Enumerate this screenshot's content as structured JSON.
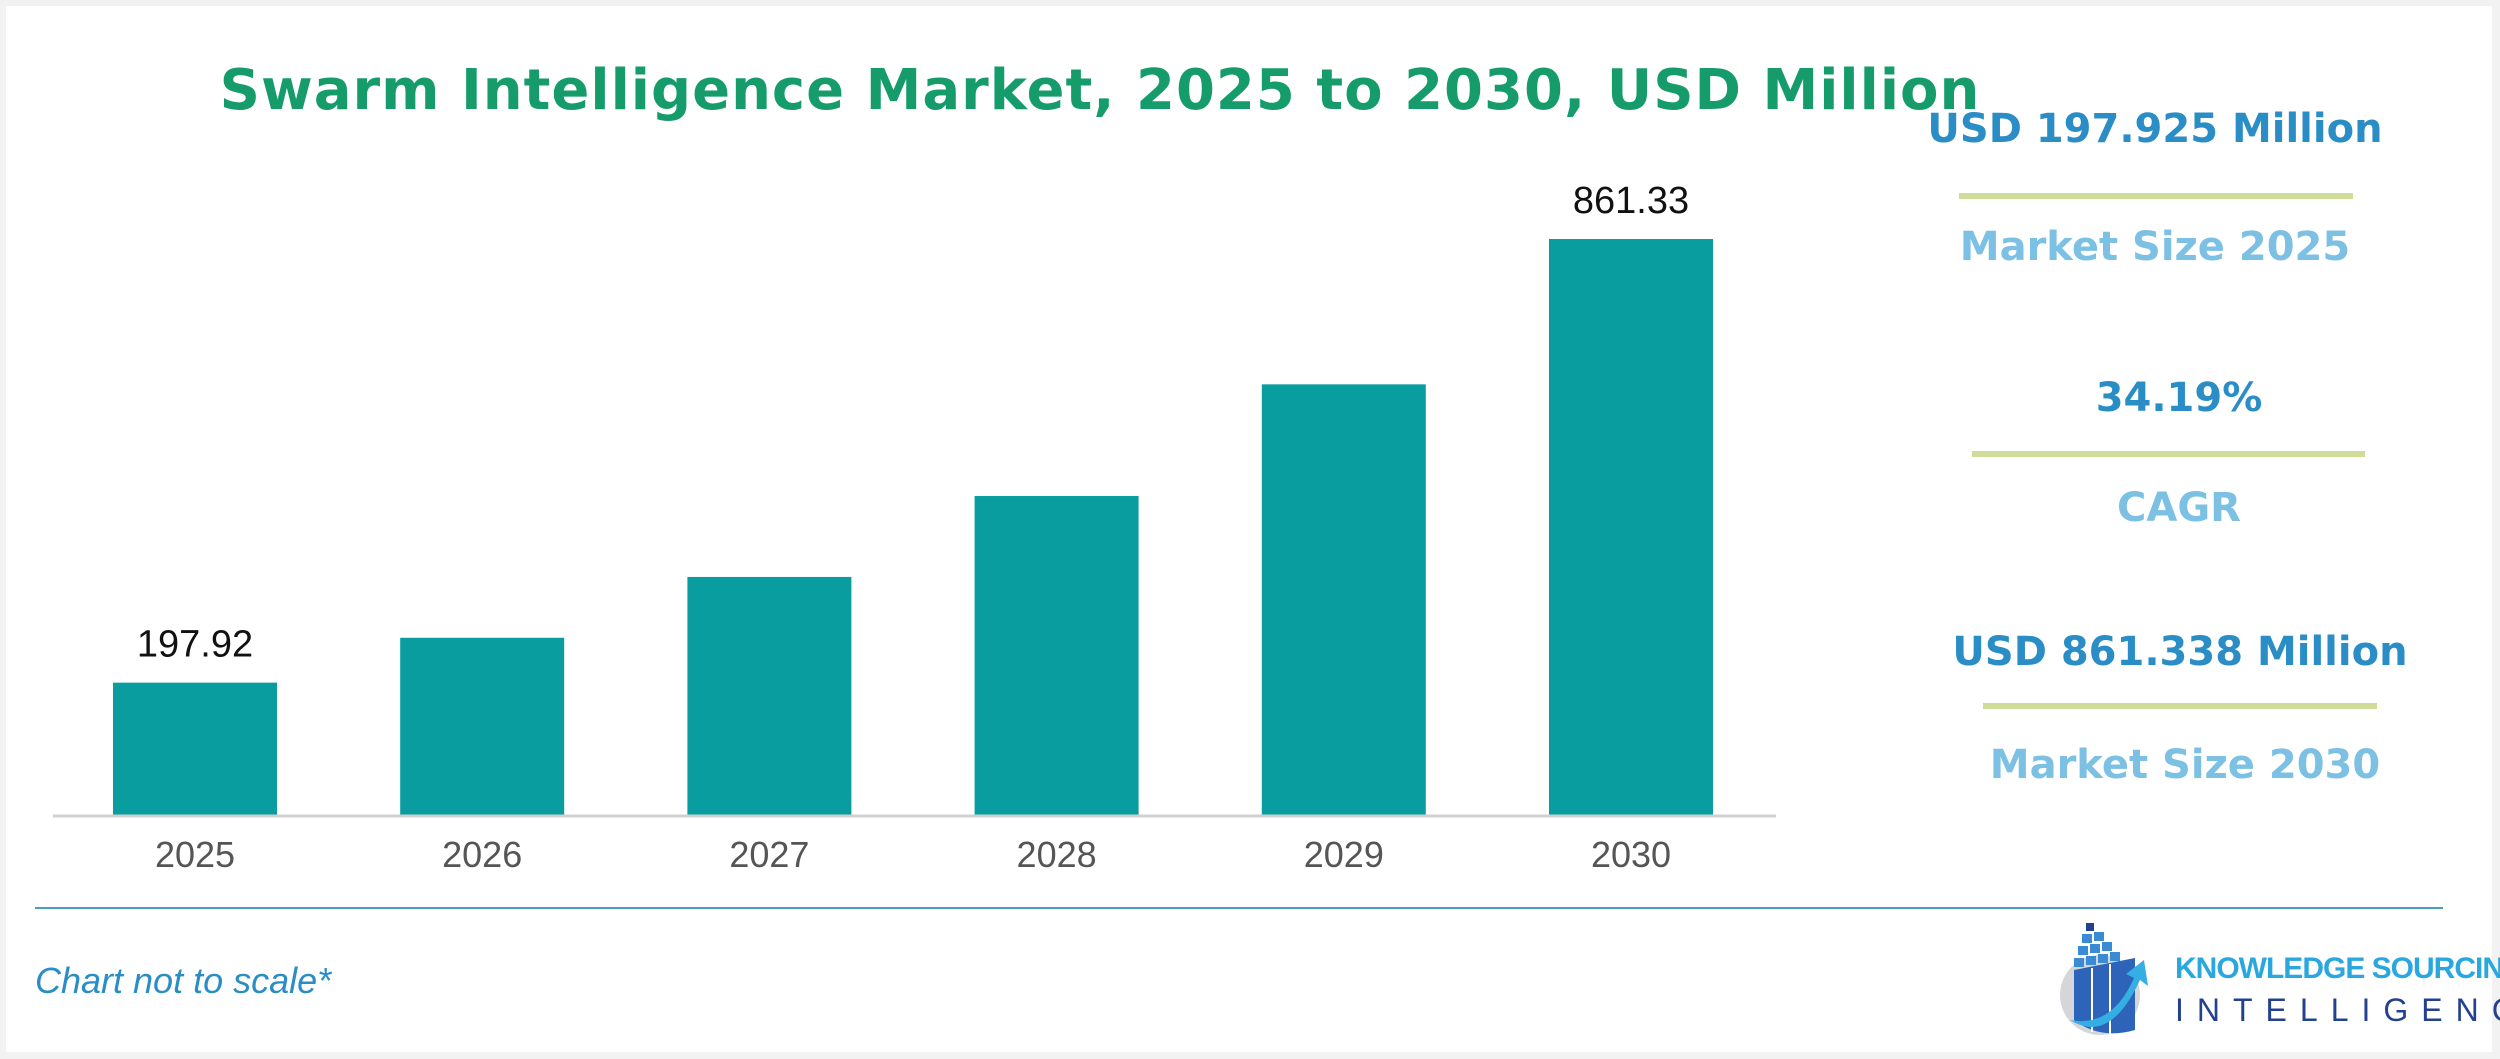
{
  "chart_data": {
    "type": "bar",
    "title": "Swarm Intelligence Market, 2025 to 2030, USD Million",
    "categories": [
      "2025",
      "2026",
      "2027",
      "2028",
      "2029",
      "2030"
    ],
    "values": [
      197.92,
      265,
      356,
      477,
      644,
      861.33
    ],
    "data_labels": [
      "197.92",
      null,
      null,
      null,
      null,
      "861.33"
    ],
    "ylim": [
      0,
      861.33
    ],
    "grid": false,
    "bar_color": "#0a9da0"
  },
  "summary": [
    {
      "value": "USD 197.925 Million",
      "label": "Market Size 2025"
    },
    {
      "value": "34.19%",
      "label": "CAGR"
    },
    {
      "value": "USD 861.338 Million",
      "label": "Market Size 2030"
    }
  ],
  "footer": {
    "note": "Chart not to scale*"
  },
  "logo": {
    "line1": "KNOWLEDGE SOURCING",
    "line2": "INTELLIGENCE"
  },
  "colors": {
    "title": "#169c6b",
    "value": "#2a8dc5",
    "label": "#7cc0e3",
    "divider": "#cfdc9a"
  }
}
